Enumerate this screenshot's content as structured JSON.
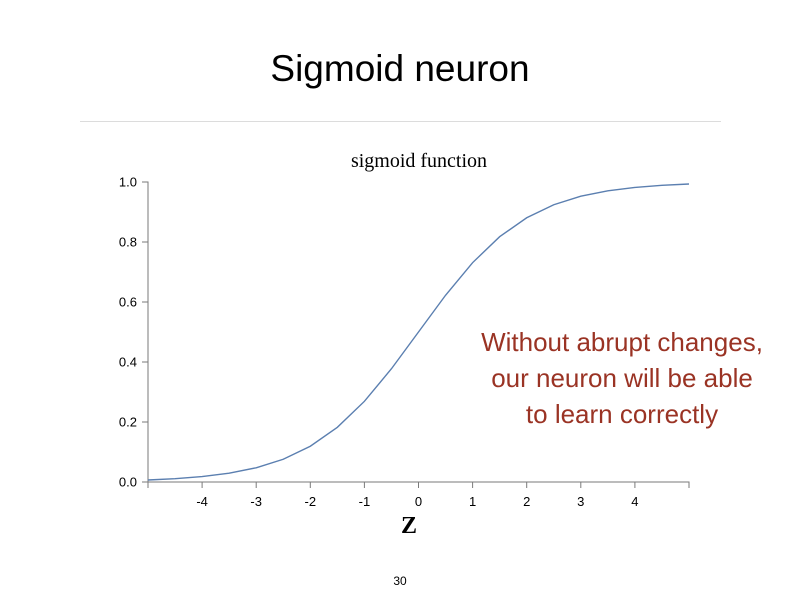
{
  "slide": {
    "title": "Sigmoid neuron",
    "annotation_lines": [
      "Without abrupt changes,",
      "our neuron will be able",
      "to learn correctly"
    ],
    "page_number": "30",
    "annotation_color": "#9a3324"
  },
  "chart_data": {
    "type": "line",
    "title": "sigmoid function",
    "xlabel": "Z",
    "ylabel": "",
    "xlim": [
      -5,
      5
    ],
    "ylim": [
      0,
      1
    ],
    "x_ticks": [
      -4,
      -3,
      -2,
      -1,
      0,
      1,
      2,
      3,
      4
    ],
    "x_tick_labels": [
      "-4",
      "-3",
      "-2",
      "-1",
      "0",
      "1",
      "2",
      "3",
      "4"
    ],
    "y_ticks": [
      0,
      0.2,
      0.4,
      0.6,
      0.8,
      1.0
    ],
    "y_tick_labels": [
      "0.0",
      "0.2",
      "0.4",
      "0.6",
      "0.8",
      "1.0"
    ],
    "grid": false,
    "line_color": "#5b7fb0",
    "series": [
      {
        "x": [
          -5,
          -4.5,
          -4,
          -3.5,
          -3,
          -2.5,
          -2,
          -1.5,
          -1,
          -0.5,
          0,
          0.5,
          1,
          1.5,
          2,
          2.5,
          3,
          3.5,
          4,
          4.5,
          5
        ],
        "y": [
          0.0067,
          0.011,
          0.018,
          0.0293,
          0.0474,
          0.0759,
          0.1192,
          0.1824,
          0.2689,
          0.3775,
          0.5,
          0.6225,
          0.7311,
          0.8176,
          0.8808,
          0.9241,
          0.9526,
          0.9707,
          0.982,
          0.989,
          0.9933
        ]
      }
    ]
  }
}
